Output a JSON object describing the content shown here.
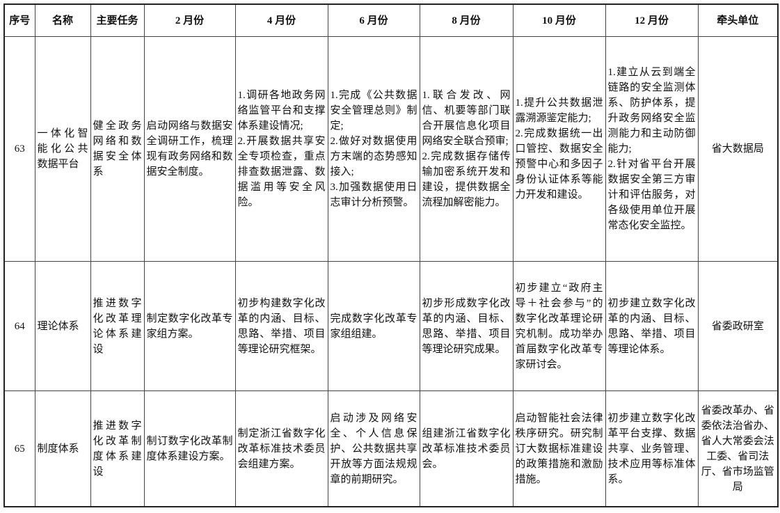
{
  "table": {
    "headers": [
      "序号",
      "名称",
      "主要任务",
      "2 月份",
      "4 月份",
      "6 月份",
      "8 月份",
      "10 月份",
      "12 月份",
      "牵头单位"
    ],
    "rows": [
      [
        "63",
        "一体化智能化公共数据平台",
        "健全政务网络和数据安全体系",
        "启动网络与数据安全调研工作，梳理现有政务网络和数据安全制度。",
        "1.调研各地政务网络监管平台和支撑体系建设情况;\n2.开展数据共享安全专项检查，重点排查数据泄露、数据滥用等安全风险。",
        "1.完成《公共数据安全管理总则》制定;\n2.做好对数据使用方末端的态势感知接入;\n3.加强数据使用日志审计分析预警。",
        "1.联合发改、网信、机要等部门联合开展信息化项目网络安全联合预审;\n2.完成数据存储传输加密系统开发和建设，提供数据全流程加解密能力。",
        "1.提升公共数据泄露溯源鉴定能力;\n2.完成数据统一出口管控、数据安全预警中心和多因子身份认证体系等能力开发和建设。",
        "1.建立从云到端全链路的安全监测体系、防护体系，提升政务网络安全监测能力和主动防御能力;\n2.针对省平台开展数据安全第三方审计和评估服务，对各级使用单位开展常态化安全监控。",
        "省大数据局"
      ],
      [
        "64",
        "理论体系",
        "推进数字化改革理论体系建设",
        "制定数字化改革专家组方案。",
        "初步构建数字化改革的内涵、目标、思路、举措、项目等理论研究框架。",
        "完成数字化改革专家组组建。",
        "初步形成数字化改革的内涵、目标、思路、举措、项目等理论研究成果。",
        "初步建立“政府主导＋社会参与”的数字化改革理论研究机制。成功举办首届数字化改革专家研讨会。",
        "初步建立数字化改革的内涵、目标、思路、举措、项目等理论体系。",
        "省委政研室"
      ],
      [
        "65",
        "制度体系",
        "推进数字化改革制度体系建设",
        "制订数字化改革制度体系建设方案。",
        "制定浙江省数字化改革标准技术委员会组建方案。",
        "启动涉及网络安全、个人信息保护、公共数据共享开放等方面法规规章的前期研究。",
        "组建浙江省数字化改革标准技术委员会。",
        "启动智能社会法律秩序研究。研究制订大数据标准建设的政策措施和激励措施。",
        "初步建立数字化改革平台支撑、数据共享、业务管理、技术应用等标准体系。",
        "省委改革办、省委依法治省办、省人大常委会法工委、省司法厅、省市场监管局"
      ]
    ]
  }
}
